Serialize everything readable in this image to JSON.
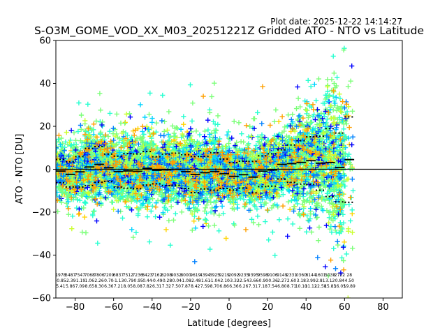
{
  "plot_date": "Plot date: 2025-12-22 14:14:27",
  "chart_data": {
    "type": "scatter",
    "title": "S-O3M_GOME_VOD_XX_M03_20251221Z Gridded ATO - NTO vs Latitude",
    "xlabel": "Latitude [degrees]",
    "ylabel": "ATO - NTO [DU]",
    "xlim": [
      -90,
      90
    ],
    "ylim": [
      -60,
      60
    ],
    "x_ticks": [
      -80,
      -60,
      -40,
      -20,
      0,
      20,
      40,
      60,
      80
    ],
    "y_ticks": [
      -60,
      -40,
      -20,
      0,
      20,
      40,
      60
    ],
    "x_tick_labels": [
      "−80",
      "−60",
      "−40",
      "−20",
      "0",
      "20",
      "40",
      "60",
      "80"
    ],
    "y_tick_labels": [
      "−60",
      "−40",
      "−20",
      "0",
      "20",
      "40",
      "60"
    ],
    "zero_line": 0,
    "marker": "+",
    "colormap": [
      "#0000ff",
      "#0080ff",
      "#00d4ff",
      "#26ffd0",
      "#7cff79",
      "#caff2e",
      "#ffd400",
      "#ffa000"
    ],
    "bins": [
      {
        "lat": -87.5,
        "count": "1978",
        "mean": "-0.85",
        "std": "5.41",
        "m": -0.85,
        "s": 5.41
      },
      {
        "lat": -82.5,
        "count": "5487",
        "mean": "-2.39",
        "std": "5.86",
        "m": -2.39,
        "s": 5.86
      },
      {
        "lat": -77.5,
        "count": "7547",
        "mean": "-1.19",
        "std": "7.09",
        "m": -1.19,
        "s": 7.09
      },
      {
        "lat": -72.5,
        "count": "7068",
        "mean": "1.06",
        "std": "8.65",
        "m": 1.06,
        "s": 8.65
      },
      {
        "lat": -67.5,
        "count": "7806",
        "mean": "2.26",
        "std": "8.30",
        "m": 2.26,
        "s": 8.3
      },
      {
        "lat": -62.5,
        "count": "7209",
        "mean": "0.70",
        "std": "6.36",
        "m": 0.7,
        "s": 6.36
      },
      {
        "lat": -57.5,
        "count": "6837",
        "mean": "-1.13",
        "std": "7.21",
        "m": -1.13,
        "s": 7.21
      },
      {
        "lat": -52.5,
        "count": "7512",
        "mean": "-0.79",
        "std": "8.05",
        "m": -0.79,
        "s": 8.05
      },
      {
        "lat": -47.5,
        "count": "7236",
        "mean": "-0.95",
        "std": "8.08",
        "m": -0.95,
        "s": 8.08
      },
      {
        "lat": -42.5,
        "count": "8423",
        "mean": "0.44",
        "std": "7.82",
        "m": 0.44,
        "s": 7.82
      },
      {
        "lat": -37.5,
        "count": "7162",
        "mean": "-0.49",
        "std": "6.31",
        "m": -0.49,
        "s": 6.31
      },
      {
        "lat": -32.5,
        "count": "8208",
        "mean": "-0.28",
        "std": "7.32",
        "m": -0.28,
        "s": 7.32
      },
      {
        "lat": -27.5,
        "count": "9032",
        "mean": "-0.04",
        "std": "7.50",
        "m": -0.04,
        "s": 7.5
      },
      {
        "lat": -22.5,
        "count": "8000",
        "mean": "-1.08",
        "std": "7.87",
        "m": -1.08,
        "s": 7.87
      },
      {
        "lat": -17.5,
        "count": "9619",
        "mean": "-2.48",
        "std": "8.42",
        "m": -2.48,
        "s": 8.42
      },
      {
        "lat": -12.5,
        "count": "4394",
        "mean": "-1.61",
        "std": "7.59",
        "m": -1.61,
        "s": 7.59
      },
      {
        "lat": -7.5,
        "count": "3925",
        "mean": "-1.04",
        "std": "8.70",
        "m": -1.04,
        "s": 8.7
      },
      {
        "lat": -2.5,
        "count": "9219",
        "mean": "-2.10",
        "std": "6.86",
        "m": -2.1,
        "s": 6.86
      },
      {
        "lat": 2.5,
        "count": "2092",
        "mean": "-3.32",
        "std": "6.36",
        "m": -3.32,
        "s": 6.36
      },
      {
        "lat": 7.5,
        "count": "9235",
        "mean": "-2.54",
        "std": "6.26",
        "m": -2.54,
        "s": 6.26
      },
      {
        "lat": 12.5,
        "count": "9395",
        "mean": "-3.66",
        "std": "7.31",
        "m": -3.66,
        "s": 7.31
      },
      {
        "lat": 17.5,
        "count": "9598",
        "mean": "-0.90",
        "std": "7.18",
        "m": -0.9,
        "s": 7.18
      },
      {
        "lat": 22.5,
        "count": "9106",
        "mean": "-0.36",
        "std": "7.54",
        "m": -0.36,
        "s": 7.54
      },
      {
        "lat": 27.5,
        "count": "9149",
        "mean": "2.27",
        "std": "6.80",
        "m": 2.27,
        "s": 6.8
      },
      {
        "lat": 32.5,
        "count": "2331",
        "mean": "2.60",
        "std": "8.71",
        "m": 2.6,
        "s": 8.71
      },
      {
        "lat": 37.5,
        "count": "0360",
        "mean": "3.18",
        "std": "10.10",
        "m": 3.18,
        "s": 10.1
      },
      {
        "lat": 42.5,
        "count": "8144",
        "mean": "3.99",
        "std": "11.12",
        "m": 3.99,
        "s": 11.12
      },
      {
        "lat": 47.5,
        "count": "1601",
        "mean": "2.81",
        "std": "12.58",
        "m": 2.81,
        "s": 12.58
      },
      {
        "lat": 52.5,
        "count": "5038",
        "mean": "3.12",
        "std": "15.83",
        "m": 3.12,
        "s": 15.83
      },
      {
        "lat": 57.5,
        "count": "2722",
        "mean": "0.84",
        "std": "16.05",
        "m": 0.84,
        "s": 16.05
      },
      {
        "lat": 62.5,
        "count": "28",
        "mean": "4.50",
        "std": "19.89",
        "m": 4.5,
        "s": 19.89
      }
    ]
  }
}
